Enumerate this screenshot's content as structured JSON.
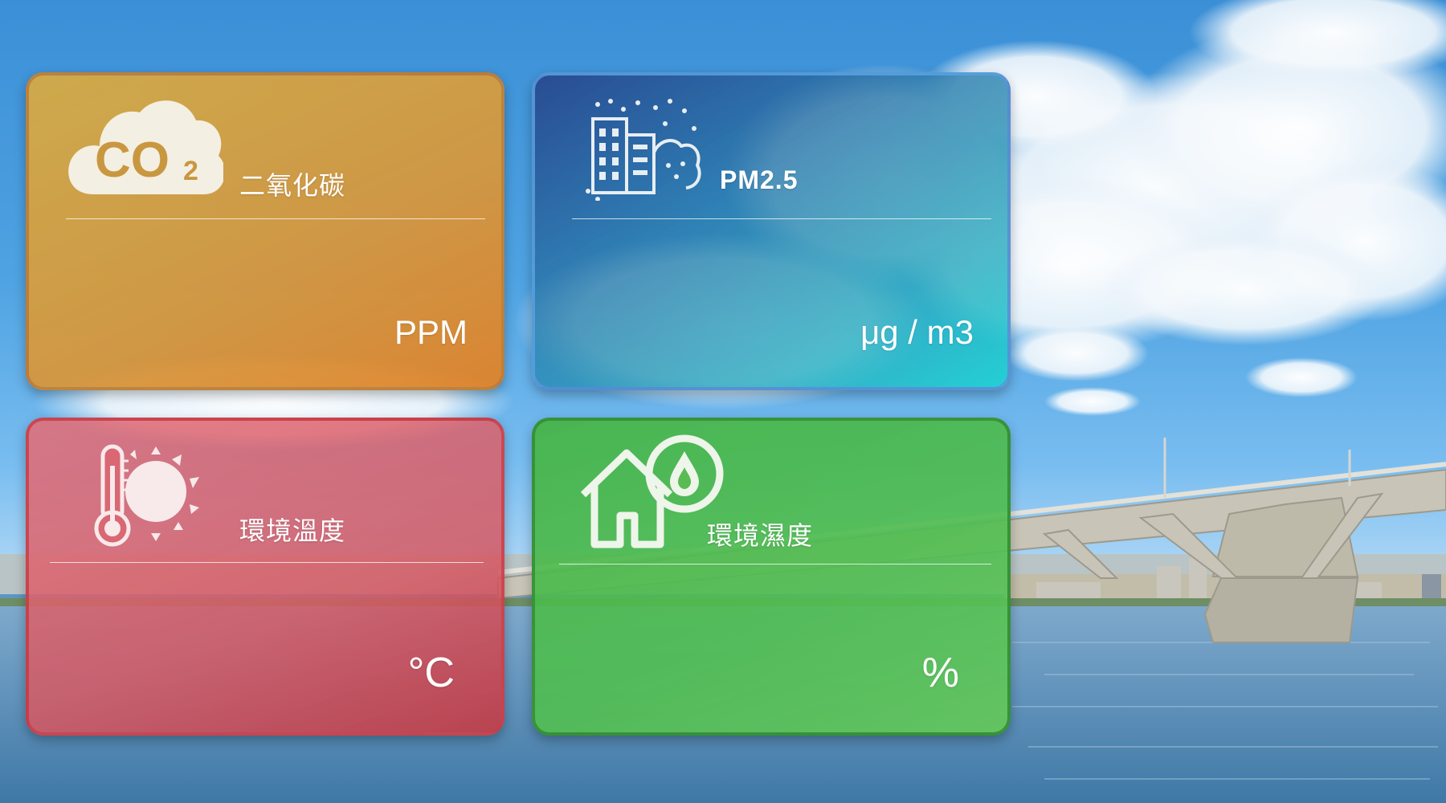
{
  "cards": {
    "co2": {
      "icon_text": "CO",
      "icon_sub": "2",
      "title": "二氧化碳",
      "unit": "PPM",
      "value": "",
      "icon": "co2-cloud-icon",
      "color": "#d49a45"
    },
    "pm25": {
      "title": "PM2.5",
      "unit": "μg / m3",
      "value": "",
      "icon": "city-dust-icon",
      "color": "#2b86b3"
    },
    "temperature": {
      "title": "環境溫度",
      "unit": "°C",
      "value": "",
      "icon": "thermometer-sun-icon",
      "color": "#d45b66"
    },
    "humidity": {
      "title": "環境濕度",
      "unit": "%",
      "value": "",
      "icon": "house-droplet-icon",
      "color": "#52b84e"
    }
  }
}
